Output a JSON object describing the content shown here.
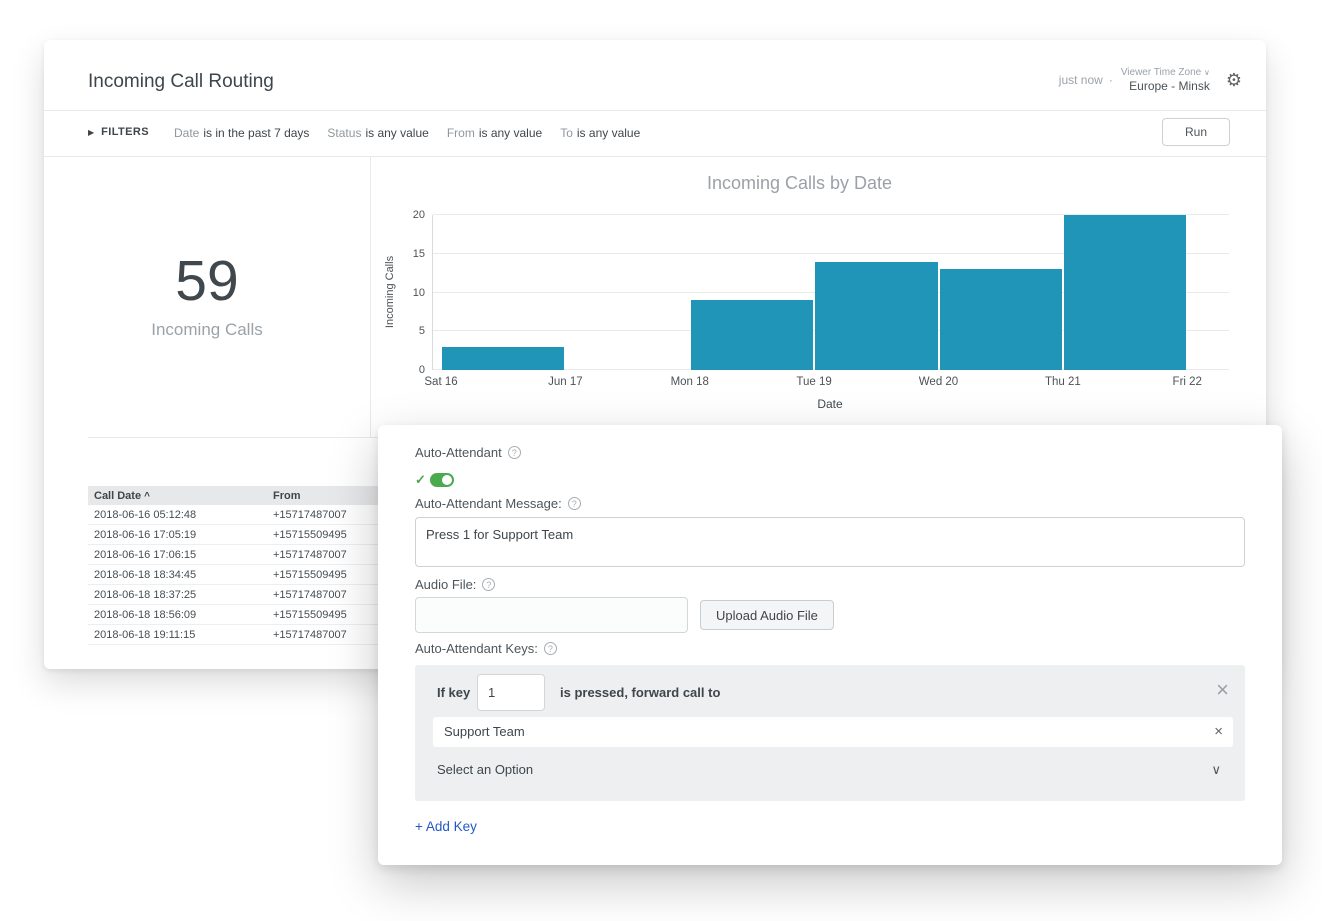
{
  "window": {
    "title": "Incoming Call Routing",
    "updated": "just now",
    "separator": "·",
    "timezone_label": "Viewer Time Zone",
    "timezone_chevron": "∨",
    "timezone_value": "Europe - Minsk",
    "settings_icon": "⚙"
  },
  "filters": {
    "expand_icon": "▶",
    "label": "FILTERS",
    "items": [
      {
        "field": "Date",
        "condition": "is in the past 7 days"
      },
      {
        "field": "Status",
        "condition": "is any value"
      },
      {
        "field": "From",
        "condition": "is any value"
      },
      {
        "field": "To",
        "condition": "is any value"
      }
    ],
    "run_label": "Run"
  },
  "kpi": {
    "value": "59",
    "label": "Incoming Calls"
  },
  "chart_data": {
    "type": "bar",
    "title": "Incoming Calls by Date",
    "categories": [
      "Sat 16",
      "Jun 17",
      "Mon 18",
      "Tue 19",
      "Wed 20",
      "Thu 21",
      "Fri 22"
    ],
    "values": [
      3,
      0,
      9,
      14,
      13,
      20,
      0
    ],
    "xlabel": "Date",
    "ylabel": "Incoming Calls",
    "ylim": [
      0,
      20
    ],
    "yticks": [
      0,
      5,
      10,
      15,
      20
    ],
    "bar_color": "#2095B7",
    "grid": true,
    "legend": "none"
  },
  "table": {
    "columns": [
      "Call Date",
      "From"
    ],
    "sort_asc_icon": "^",
    "rows": [
      [
        "2018-06-16 05:12:48",
        "+15717487007"
      ],
      [
        "2018-06-16 17:05:19",
        "+15715509495"
      ],
      [
        "2018-06-16 17:06:15",
        "+15717487007"
      ],
      [
        "2018-06-18 18:34:45",
        "+15715509495"
      ],
      [
        "2018-06-18 18:37:25",
        "+15717487007"
      ],
      [
        "2018-06-18 18:56:09",
        "+15715509495"
      ],
      [
        "2018-06-18 19:11:15",
        "+15717487007"
      ]
    ]
  },
  "panel": {
    "auto_attendant": {
      "label": "Auto-Attendant",
      "help_icon": "?",
      "toggle_on": true,
      "check_icon": "✓"
    },
    "message": {
      "label": "Auto-Attendant Message:",
      "help_icon": "?",
      "value": "Press 1 for Support Team"
    },
    "audio": {
      "label": "Audio File:",
      "help_icon": "?",
      "value": "",
      "upload_label": "Upload Audio File"
    },
    "keys": {
      "label": "Auto-Attendant Keys:",
      "help_icon": "?",
      "key_rows": [
        {
          "prefix": "If key",
          "key": "1",
          "suffix": "is pressed, forward call to",
          "close_icon": "×",
          "target": "Support Team",
          "clear_icon": "×",
          "dropdown_placeholder": "Select an Option",
          "dropdown_chevron": "∨"
        }
      ],
      "add_key": "+ Add Key"
    }
  },
  "colors": {
    "bar": "#2095B7",
    "toggle_green": "#4BA94E",
    "link_blue": "#2458C6"
  }
}
